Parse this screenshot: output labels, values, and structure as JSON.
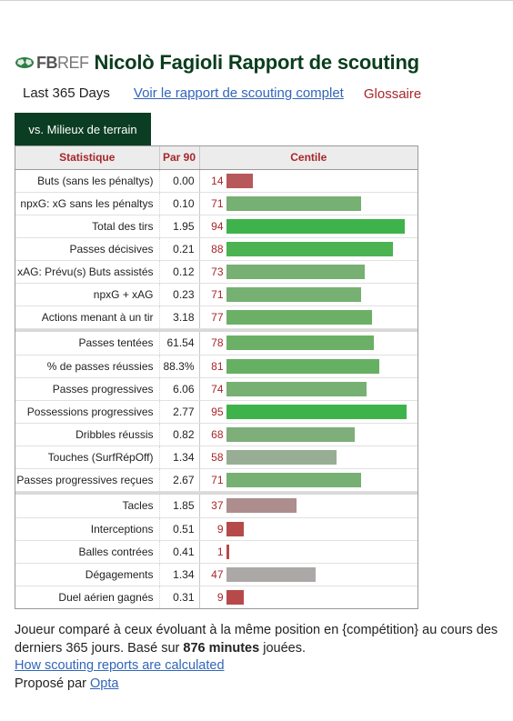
{
  "logo": {
    "fb": "FB",
    "ref": "REF"
  },
  "title": "Nicolò Fagioli Rapport de scouting",
  "nav": {
    "period": "Last 365 Days",
    "full_report_link": "Voir le rapport de scouting complet",
    "glossary_link": "Glossaire"
  },
  "tab": {
    "label": "vs. Milieux de terrain"
  },
  "table": {
    "headers": {
      "stat": "Statistique",
      "per90": "Par 90",
      "percentile": "Centile"
    },
    "colors": {
      "attack_strong": "#3fb34b",
      "attack_mid": "#76b072",
      "possession_mid": "#97ae94",
      "defense_weak": "#ad8d8d",
      "defense_neutral": "#aca8a8",
      "very_low": "#b64a4b"
    },
    "groups": [
      [
        {
          "stat": "Buts (sans les pénaltys)",
          "per90": "0.00",
          "percentile": 14,
          "color": "#b7585a"
        },
        {
          "stat": "npxG: xG sans les pénaltys",
          "per90": "0.10",
          "percentile": 71,
          "color": "#76b072"
        },
        {
          "stat": "Total des tirs",
          "per90": "1.95",
          "percentile": 94,
          "color": "#3fb34b"
        },
        {
          "stat": "Passes décisives",
          "per90": "0.21",
          "percentile": 88,
          "color": "#4bb352"
        },
        {
          "stat": "xAG: Prévu(s) Buts assistés",
          "per90": "0.12",
          "percentile": 73,
          "color": "#76b072"
        },
        {
          "stat": "npxG + xAG",
          "per90": "0.23",
          "percentile": 71,
          "color": "#76b072"
        },
        {
          "stat": "Actions menant à un tir",
          "per90": "3.18",
          "percentile": 77,
          "color": "#6cb068"
        }
      ],
      [
        {
          "stat": "Passes tentées",
          "per90": "61.54",
          "percentile": 78,
          "color": "#6cb068"
        },
        {
          "stat": "% de passes réussies",
          "per90": "88.3%",
          "percentile": 81,
          "color": "#66b063"
        },
        {
          "stat": "Passes progressives",
          "per90": "6.06",
          "percentile": 74,
          "color": "#76b072"
        },
        {
          "stat": "Possessions progressives",
          "per90": "2.77",
          "percentile": 95,
          "color": "#3fb34b"
        },
        {
          "stat": "Dribbles réussis",
          "per90": "0.82",
          "percentile": 68,
          "color": "#7eae7a"
        },
        {
          "stat": "Touches (SurfRépOff)",
          "per90": "1.34",
          "percentile": 58,
          "color": "#97ae94"
        },
        {
          "stat": "Passes progressives reçues",
          "per90": "2.67",
          "percentile": 71,
          "color": "#76b072"
        }
      ],
      [
        {
          "stat": "Tacles",
          "per90": "1.85",
          "percentile": 37,
          "color": "#ad8d8d"
        },
        {
          "stat": "Interceptions",
          "per90": "0.51",
          "percentile": 9,
          "color": "#b64a4b"
        },
        {
          "stat": "Balles contrées",
          "per90": "0.41",
          "percentile": 1,
          "color": "#b64a4b"
        },
        {
          "stat": "Dégagements",
          "per90": "1.34",
          "percentile": 47,
          "color": "#aca8a8"
        },
        {
          "stat": "Duel aérien gagnés",
          "per90": "0.31",
          "percentile": 9,
          "color": "#b64a4b"
        }
      ]
    ]
  },
  "footer": {
    "desc_before": "Joueur comparé à ceux évoluant à la même position en {compétition} au cours des derniers 365 jours. Basé sur ",
    "minutes": "876 minutes",
    "desc_after": " jouées.",
    "how_link": "How scouting reports are calculated",
    "powered_prefix": "Proposé par ",
    "powered_link": "Opta"
  }
}
